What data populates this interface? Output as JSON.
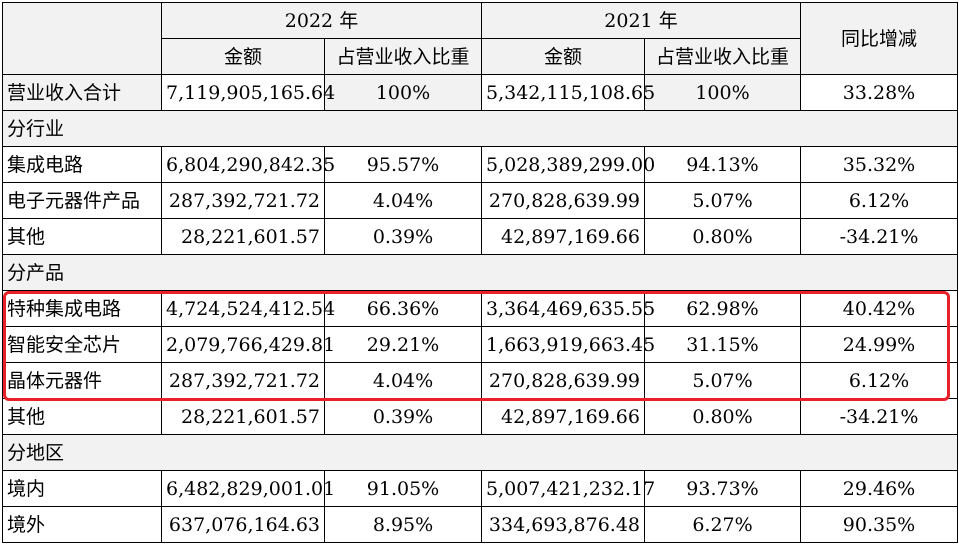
{
  "header": {
    "year_2022": "2022 年",
    "year_2021": "2021 年",
    "yoy": "同比增减",
    "amount": "金额",
    "ratio": "占营业收入比重"
  },
  "total_row": {
    "label": "营业收入合计",
    "amt2022": "7,119,905,165.64",
    "pct2022": "100%",
    "amt2021": "5,342,115,108.65",
    "pct2021": "100%",
    "yoy": "33.28%"
  },
  "sections": [
    {
      "title": "分行业",
      "rows": [
        {
          "label": "集成电路",
          "amt2022": "6,804,290,842.35",
          "pct2022": "95.57%",
          "amt2021": "5,028,389,299.00",
          "pct2021": "94.13%",
          "yoy": "35.32%"
        },
        {
          "label": "电子元器件产品",
          "amt2022": "287,392,721.72",
          "pct2022": "4.04%",
          "amt2021": "270,828,639.99",
          "pct2021": "5.07%",
          "yoy": "6.12%"
        },
        {
          "label": "其他",
          "amt2022": "28,221,601.57",
          "pct2022": "0.39%",
          "amt2021": "42,897,169.66",
          "pct2021": "0.80%",
          "yoy": "-34.21%"
        }
      ]
    },
    {
      "title": "分产品",
      "rows": [
        {
          "label": "特种集成电路",
          "amt2022": "4,724,524,412.54",
          "pct2022": "66.36%",
          "amt2021": "3,364,469,635.55",
          "pct2021": "62.98%",
          "yoy": "40.42%"
        },
        {
          "label": "智能安全芯片",
          "amt2022": "2,079,766,429.81",
          "pct2022": "29.21%",
          "amt2021": "1,663,919,663.45",
          "pct2021": "31.15%",
          "yoy": "24.99%"
        },
        {
          "label": "晶体元器件",
          "amt2022": "287,392,721.72",
          "pct2022": "4.04%",
          "amt2021": "270,828,639.99",
          "pct2021": "5.07%",
          "yoy": "6.12%"
        },
        {
          "label": "其他",
          "amt2022": "28,221,601.57",
          "pct2022": "0.39%",
          "amt2021": "42,897,169.66",
          "pct2021": "0.80%",
          "yoy": "-34.21%"
        }
      ]
    },
    {
      "title": "分地区",
      "rows": [
        {
          "label": "境内",
          "amt2022": "6,482,829,001.01",
          "pct2022": "91.05%",
          "amt2021": "5,007,421,232.17",
          "pct2021": "93.73%",
          "yoy": "29.46%"
        },
        {
          "label": "境外",
          "amt2022": "637,076,164.63",
          "pct2022": "8.95%",
          "amt2021": "334,693,876.48",
          "pct2021": "6.27%",
          "yoy": "90.35%"
        }
      ]
    }
  ],
  "colors": {
    "header_shade": "#f2f2f2",
    "highlight": "#e8202a"
  }
}
